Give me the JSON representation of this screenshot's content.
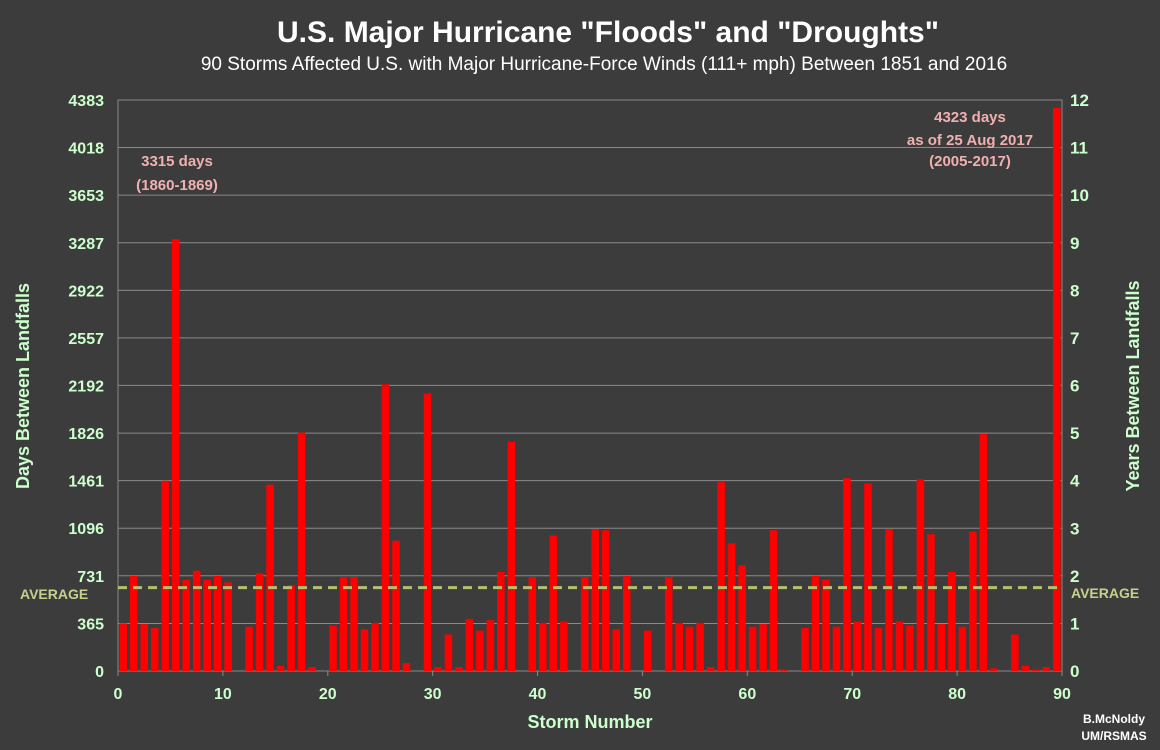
{
  "chart_data": {
    "type": "bar",
    "title": "U.S. Major Hurricane \"Floods\" and \"Droughts\"",
    "subtitle": "90 Storms Affected U.S. with Major Hurricane-Force Winds (111+ mph) Between 1851 and 2016",
    "xlabel": "Storm Number",
    "ylabel_left": "Days Between Landfalls",
    "ylabel_right": "Years Between Landfalls",
    "xlim": [
      0,
      90
    ],
    "ylim": [
      0,
      4383
    ],
    "x_ticks": [
      "0",
      "10",
      "20",
      "30",
      "40",
      "50",
      "60",
      "70",
      "80",
      "90"
    ],
    "y_ticks_left": [
      "0",
      "365",
      "731",
      "1096",
      "1461",
      "1826",
      "2192",
      "2557",
      "2922",
      "3287",
      "3653",
      "4018",
      "4383"
    ],
    "y_ticks_right": [
      "0",
      "1",
      "2",
      "3",
      "4",
      "5",
      "6",
      "7",
      "8",
      "9",
      "10",
      "11",
      "12"
    ],
    "average_value": 640,
    "average_label": "AVERAGE",
    "bar_color": "#ff0000",
    "average_line_color": "#b4c070",
    "grid": true,
    "x": [
      0,
      1,
      2,
      3,
      4,
      5,
      6,
      7,
      8,
      9,
      10,
      11,
      12,
      13,
      14,
      15,
      16,
      17,
      18,
      19,
      20,
      21,
      22,
      23,
      24,
      25,
      26,
      27,
      28,
      29,
      30,
      31,
      32,
      33,
      34,
      35,
      36,
      37,
      38,
      39,
      40,
      41,
      42,
      43,
      44,
      45,
      46,
      47,
      48,
      49,
      50,
      51,
      52,
      53,
      54,
      55,
      56,
      57,
      58,
      59,
      60,
      61,
      62,
      63,
      64,
      65,
      66,
      67,
      68,
      69,
      70,
      71,
      72,
      73,
      74,
      75,
      76,
      77,
      78,
      79,
      80,
      81,
      82,
      83,
      84,
      85,
      86,
      87,
      88,
      89
    ],
    "values": [
      365,
      730,
      360,
      330,
      1460,
      3315,
      700,
      770,
      700,
      730,
      680,
      0,
      340,
      750,
      1430,
      40,
      660,
      1830,
      30,
      0,
      350,
      720,
      720,
      320,
      370,
      2200,
      1000,
      60,
      0,
      2130,
      30,
      280,
      30,
      400,
      310,
      390,
      760,
      1760,
      0,
      720,
      370,
      1040,
      380,
      0,
      720,
      1090,
      1080,
      320,
      730,
      0,
      310,
      0,
      720,
      370,
      340,
      370,
      30,
      1450,
      980,
      810,
      340,
      360,
      1080,
      10,
      0,
      330,
      730,
      700,
      340,
      1480,
      380,
      1440,
      330,
      1090,
      380,
      350,
      1470,
      1050,
      360,
      760,
      340,
      1070,
      1820,
      20,
      0,
      280,
      40,
      10,
      30,
      4323
    ],
    "annotations": [
      {
        "line1": "3315 days",
        "line2": "(1860-1869)"
      },
      {
        "line1": "4323 days",
        "line2": "as of 25 Aug 2017",
        "line3": "(2005-2017)"
      }
    ],
    "credit_line1": "B.McNoldy",
    "credit_line2": "UM/RSMAS"
  }
}
